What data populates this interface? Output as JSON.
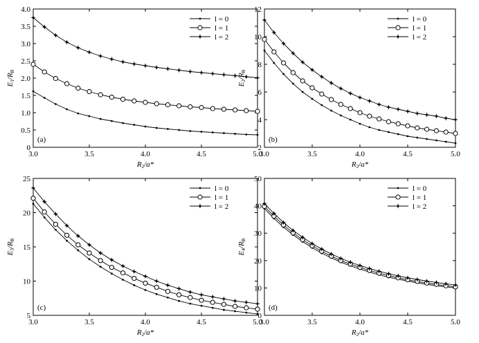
{
  "chart_data": [
    {
      "type": "line",
      "panel_label": "(a)",
      "xlabel": {
        "main": "R",
        "sub": "2",
        "rest": "/a*"
      },
      "ylabel": {
        "main": "E",
        "sub": "1",
        "rest": "/R",
        "sub2": "B"
      },
      "xlim": [
        3.0,
        5.0
      ],
      "ylim": [
        0,
        4.0
      ],
      "xticks": [
        "3.0",
        "3.5",
        "4.0",
        "4.5",
        "5.0"
      ],
      "yticks": [
        "0",
        "0.5",
        "1.0",
        "1.5",
        "2.0",
        "2.5",
        "3.0",
        "3.5",
        "4.0"
      ],
      "legend_position": "top-right",
      "x": [
        3.0,
        3.1,
        3.2,
        3.3,
        3.4,
        3.5,
        3.6,
        3.7,
        3.8,
        3.9,
        4.0,
        4.1,
        4.2,
        4.3,
        4.4,
        4.5,
        4.6,
        4.7,
        4.8,
        4.9,
        5.0
      ],
      "series": [
        {
          "name": "l = 0",
          "marker": "dot",
          "values": [
            1.62,
            1.43,
            1.25,
            1.1,
            0.98,
            0.9,
            0.82,
            0.76,
            0.7,
            0.65,
            0.6,
            0.56,
            0.53,
            0.5,
            0.47,
            0.45,
            0.43,
            0.41,
            0.39,
            0.37,
            0.36
          ]
        },
        {
          "name": "l = 1",
          "marker": "circle",
          "values": [
            2.4,
            2.18,
            1.99,
            1.84,
            1.71,
            1.61,
            1.52,
            1.45,
            1.39,
            1.34,
            1.3,
            1.26,
            1.23,
            1.2,
            1.17,
            1.15,
            1.12,
            1.1,
            1.08,
            1.06,
            1.04
          ]
        },
        {
          "name": "l = 2",
          "marker": "star",
          "values": [
            3.75,
            3.48,
            3.24,
            3.04,
            2.88,
            2.75,
            2.64,
            2.55,
            2.47,
            2.41,
            2.36,
            2.31,
            2.27,
            2.23,
            2.19,
            2.16,
            2.13,
            2.1,
            2.07,
            2.04,
            2.01
          ]
        }
      ]
    },
    {
      "type": "line",
      "panel_label": "(b)",
      "xlabel": {
        "main": "R",
        "sub": "2",
        "rest": "/a*"
      },
      "ylabel": {
        "main": "E",
        "sub": "2",
        "rest": "/R",
        "sub2": "B"
      },
      "xlim": [
        3.0,
        5.0
      ],
      "ylim": [
        2,
        12
      ],
      "xticks": [
        "3.0",
        "3.5",
        "4.0",
        "4.5",
        "5.0"
      ],
      "yticks": [
        "2",
        "4",
        "6",
        "8",
        "10",
        "12"
      ],
      "legend_position": "top-right",
      "x": [
        3.0,
        3.1,
        3.2,
        3.3,
        3.4,
        3.5,
        3.6,
        3.7,
        3.8,
        3.9,
        4.0,
        4.1,
        4.2,
        4.3,
        4.4,
        4.5,
        4.6,
        4.7,
        4.8,
        4.9,
        5.0
      ],
      "series": [
        {
          "name": "l = 0",
          "marker": "dot",
          "values": [
            9.0,
            8.1,
            7.3,
            6.6,
            6.0,
            5.5,
            5.05,
            4.65,
            4.3,
            4.0,
            3.7,
            3.45,
            3.25,
            3.1,
            2.95,
            2.8,
            2.7,
            2.6,
            2.5,
            2.4,
            2.3
          ]
        },
        {
          "name": "l = 1",
          "marker": "circle",
          "values": [
            9.8,
            8.9,
            8.1,
            7.4,
            6.8,
            6.3,
            5.85,
            5.45,
            5.1,
            4.8,
            4.5,
            4.25,
            4.05,
            3.85,
            3.7,
            3.55,
            3.4,
            3.3,
            3.2,
            3.1,
            3.0
          ]
        },
        {
          "name": "l = 2",
          "marker": "star",
          "values": [
            11.2,
            10.3,
            9.5,
            8.8,
            8.15,
            7.6,
            7.1,
            6.65,
            6.25,
            5.9,
            5.6,
            5.35,
            5.1,
            4.9,
            4.75,
            4.6,
            4.45,
            4.35,
            4.25,
            4.1,
            4.0
          ]
        }
      ]
    },
    {
      "type": "line",
      "panel_label": "(c)",
      "xlabel": {
        "main": "R",
        "sub": "2",
        "rest": "/a*"
      },
      "ylabel": {
        "main": "E",
        "sub": "3",
        "rest": "/R",
        "sub2": "B"
      },
      "xlim": [
        3.0,
        5.0
      ],
      "ylim": [
        5,
        25
      ],
      "xticks": [
        "3.0",
        "3.5",
        "4.0",
        "4.5",
        "5.0"
      ],
      "yticks": [
        "5",
        "10",
        "15",
        "20",
        "25"
      ],
      "legend_position": "top-right",
      "x": [
        3.0,
        3.1,
        3.2,
        3.3,
        3.4,
        3.5,
        3.6,
        3.7,
        3.8,
        3.9,
        4.0,
        4.1,
        4.2,
        4.3,
        4.4,
        4.5,
        4.6,
        4.7,
        4.8,
        4.9,
        5.0
      ],
      "series": [
        {
          "name": "l = 0",
          "marker": "dot",
          "values": [
            21.3,
            19.3,
            17.5,
            15.9,
            14.5,
            13.2,
            12.1,
            11.1,
            10.2,
            9.4,
            8.7,
            8.1,
            7.6,
            7.1,
            6.7,
            6.4,
            6.1,
            5.8,
            5.6,
            5.4,
            5.2
          ]
        },
        {
          "name": "l = 1",
          "marker": "circle",
          "values": [
            22.1,
            20.1,
            18.3,
            16.7,
            15.3,
            14.1,
            13.0,
            12.0,
            11.2,
            10.4,
            9.7,
            9.1,
            8.5,
            8.0,
            7.6,
            7.2,
            6.9,
            6.6,
            6.3,
            6.1,
            5.9
          ]
        },
        {
          "name": "l = 2",
          "marker": "star",
          "values": [
            23.6,
            21.6,
            19.8,
            18.1,
            16.6,
            15.3,
            14.1,
            13.1,
            12.2,
            11.4,
            10.7,
            10.0,
            9.4,
            8.9,
            8.4,
            8.0,
            7.7,
            7.4,
            7.1,
            6.9,
            6.7
          ]
        }
      ]
    },
    {
      "type": "line",
      "panel_label": "(d)",
      "xlabel": {
        "main": "R",
        "sub": "2",
        "rest": "/a*"
      },
      "ylabel": {
        "main": "E",
        "sub": "4",
        "rest": "/R",
        "sub2": "B"
      },
      "xlim": [
        3.0,
        5.0
      ],
      "ylim": [
        0,
        50
      ],
      "xticks": [
        "3.0",
        "3.5",
        "4.0",
        "4.5",
        "5.0"
      ],
      "yticks": [
        "0",
        "10",
        "20",
        "30",
        "40",
        "50"
      ],
      "legend_position": "top-right",
      "x": [
        3.0,
        3.1,
        3.2,
        3.3,
        3.4,
        3.5,
        3.6,
        3.7,
        3.8,
        3.9,
        4.0,
        4.1,
        4.2,
        4.3,
        4.4,
        4.5,
        4.6,
        4.7,
        4.8,
        4.9,
        5.0
      ],
      "series": [
        {
          "name": "l = 0",
          "marker": "dot",
          "values": [
            39.0,
            35.4,
            32.2,
            29.4,
            26.9,
            24.7,
            22.7,
            21.0,
            19.4,
            18.1,
            16.9,
            15.8,
            14.8,
            13.9,
            13.2,
            12.5,
            11.9,
            11.3,
            10.8,
            10.4,
            10.0
          ]
        },
        {
          "name": "l = 1",
          "marker": "circle",
          "values": [
            39.8,
            36.2,
            33.0,
            30.1,
            27.6,
            25.4,
            23.4,
            21.6,
            20.0,
            18.7,
            17.5,
            16.4,
            15.4,
            14.5,
            13.7,
            13.0,
            12.4,
            11.8,
            11.3,
            10.8,
            10.4
          ]
        },
        {
          "name": "l = 2",
          "marker": "star",
          "values": [
            40.8,
            37.2,
            33.9,
            31.0,
            28.5,
            26.2,
            24.2,
            22.4,
            20.8,
            19.4,
            18.2,
            17.1,
            16.1,
            15.2,
            14.4,
            13.7,
            13.1,
            12.5,
            12.0,
            11.5,
            11.1
          ]
        }
      ]
    }
  ]
}
